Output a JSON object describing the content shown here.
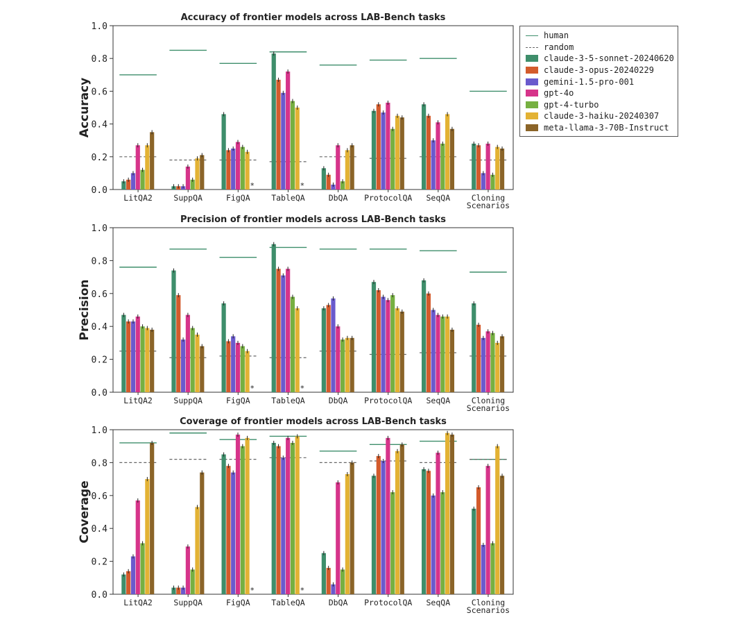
{
  "figure": {
    "bar_colors": [
      "#3e8e6b",
      "#d35b2c",
      "#6a5acd",
      "#d6348a",
      "#76b041",
      "#e3b234",
      "#8b6428"
    ],
    "human_color": "#3e8e6b",
    "random_color": "#666666"
  },
  "legend": {
    "human": "human",
    "random": "random",
    "models": [
      "claude-3-5-sonnet-20240620",
      "claude-3-opus-20240229",
      "gemini-1.5-pro-001",
      "gpt-4o",
      "gpt-4-turbo",
      "claude-3-haiku-20240307",
      "meta-llama-3-70B-Instruct"
    ]
  },
  "chart_data": [
    {
      "type": "bar",
      "title": "Accuracy of frontier models across LAB-Bench tasks",
      "ylabel": "Accuracy",
      "ylim": [
        0,
        1
      ],
      "yticks": [
        "0.0",
        "0.2",
        "0.4",
        "0.6",
        "0.8",
        "1.0"
      ],
      "categories": [
        "LitQA2",
        "SuppQA",
        "FigQA",
        "TableQA",
        "DbQA",
        "ProtocolQA",
        "SeqQA",
        "Cloning Scenarios"
      ],
      "human": [
        0.7,
        0.85,
        0.77,
        0.84,
        0.76,
        0.79,
        0.8,
        0.6
      ],
      "random": [
        0.2,
        0.18,
        0.18,
        0.17,
        0.2,
        0.19,
        0.2,
        0.18
      ],
      "series": [
        {
          "name": "claude-3-5-sonnet-20240620",
          "values": [
            0.05,
            0.02,
            0.46,
            0.83,
            0.13,
            0.48,
            0.52,
            0.28
          ]
        },
        {
          "name": "claude-3-opus-20240229",
          "values": [
            0.06,
            0.02,
            0.24,
            0.67,
            0.09,
            0.52,
            0.45,
            0.27
          ]
        },
        {
          "name": "gemini-1.5-pro-001",
          "values": [
            0.1,
            0.02,
            0.25,
            0.59,
            0.03,
            0.47,
            0.3,
            0.1
          ]
        },
        {
          "name": "gpt-4o",
          "values": [
            0.27,
            0.14,
            0.29,
            0.72,
            0.27,
            0.53,
            0.41,
            0.28
          ]
        },
        {
          "name": "gpt-4-turbo",
          "values": [
            0.12,
            0.06,
            0.26,
            0.54,
            0.05,
            0.37,
            0.28,
            0.09
          ]
        },
        {
          "name": "claude-3-haiku-20240307",
          "values": [
            0.27,
            0.19,
            0.23,
            0.5,
            0.24,
            0.45,
            0.46,
            0.26
          ]
        },
        {
          "name": "meta-llama-3-70B-Instruct",
          "values": [
            0.35,
            0.21,
            null,
            null,
            0.27,
            0.44,
            0.37,
            0.25
          ]
        }
      ],
      "missing_marker": "*"
    },
    {
      "type": "bar",
      "title": "Precision of frontier models across LAB-Bench tasks",
      "ylabel": "Precision",
      "ylim": [
        0,
        1
      ],
      "yticks": [
        "0.0",
        "0.2",
        "0.4",
        "0.6",
        "0.8",
        "1.0"
      ],
      "categories": [
        "LitQA2",
        "SuppQA",
        "FigQA",
        "TableQA",
        "DbQA",
        "ProtocolQA",
        "SeqQA",
        "Cloning Scenarios"
      ],
      "human": [
        0.76,
        0.87,
        0.82,
        0.88,
        0.87,
        0.87,
        0.86,
        0.73
      ],
      "random": [
        0.25,
        0.21,
        0.22,
        0.21,
        0.25,
        0.23,
        0.24,
        0.22
      ],
      "series": [
        {
          "name": "claude-3-5-sonnet-20240620",
          "values": [
            0.47,
            0.74,
            0.54,
            0.9,
            0.51,
            0.67,
            0.68,
            0.54
          ]
        },
        {
          "name": "claude-3-opus-20240229",
          "values": [
            0.43,
            0.59,
            0.31,
            0.75,
            0.53,
            0.62,
            0.6,
            0.41
          ]
        },
        {
          "name": "gemini-1.5-pro-001",
          "values": [
            0.43,
            0.32,
            0.34,
            0.71,
            0.57,
            0.58,
            0.5,
            0.33
          ]
        },
        {
          "name": "gpt-4o",
          "values": [
            0.46,
            0.47,
            0.3,
            0.75,
            0.4,
            0.56,
            0.47,
            0.37
          ]
        },
        {
          "name": "gpt-4-turbo",
          "values": [
            0.4,
            0.39,
            0.28,
            0.58,
            0.32,
            0.59,
            0.46,
            0.36
          ]
        },
        {
          "name": "claude-3-haiku-20240307",
          "values": [
            0.39,
            0.35,
            0.25,
            0.51,
            0.33,
            0.51,
            0.46,
            0.3
          ]
        },
        {
          "name": "meta-llama-3-70B-Instruct",
          "values": [
            0.38,
            0.28,
            null,
            null,
            0.33,
            0.49,
            0.38,
            0.34
          ]
        }
      ],
      "missing_marker": "*"
    },
    {
      "type": "bar",
      "title": "Coverage of frontier models across LAB-Bench tasks",
      "ylabel": "Coverage",
      "ylim": [
        0,
        1
      ],
      "yticks": [
        "0.0",
        "0.2",
        "0.4",
        "0.6",
        "0.8",
        "1.0"
      ],
      "categories": [
        "LitQA2",
        "SuppQA",
        "FigQA",
        "TableQA",
        "DbQA",
        "ProtocolQA",
        "SeqQA",
        "Cloning Scenarios"
      ],
      "human": [
        0.92,
        0.98,
        0.94,
        0.96,
        0.87,
        0.91,
        0.93,
        0.82
      ],
      "random": [
        0.8,
        0.82,
        0.82,
        0.83,
        0.8,
        0.81,
        0.8,
        0.82
      ],
      "series": [
        {
          "name": "claude-3-5-sonnet-20240620",
          "values": [
            0.12,
            0.04,
            0.85,
            0.92,
            0.25,
            0.72,
            0.76,
            0.52
          ]
        },
        {
          "name": "claude-3-opus-20240229",
          "values": [
            0.14,
            0.04,
            0.78,
            0.9,
            0.16,
            0.84,
            0.75,
            0.65
          ]
        },
        {
          "name": "gemini-1.5-pro-001",
          "values": [
            0.23,
            0.04,
            0.74,
            0.83,
            0.06,
            0.81,
            0.6,
            0.3
          ]
        },
        {
          "name": "gpt-4o",
          "values": [
            0.57,
            0.29,
            0.97,
            0.95,
            0.68,
            0.95,
            0.86,
            0.78
          ]
        },
        {
          "name": "gpt-4-turbo",
          "values": [
            0.31,
            0.15,
            0.9,
            0.92,
            0.15,
            0.62,
            0.62,
            0.31
          ]
        },
        {
          "name": "claude-3-haiku-20240307",
          "values": [
            0.7,
            0.53,
            0.95,
            0.96,
            0.73,
            0.87,
            0.98,
            0.9
          ]
        },
        {
          "name": "meta-llama-3-70B-Instruct",
          "values": [
            0.92,
            0.74,
            null,
            null,
            0.8,
            0.91,
            0.97,
            0.72
          ]
        }
      ],
      "missing_marker": "*"
    }
  ]
}
